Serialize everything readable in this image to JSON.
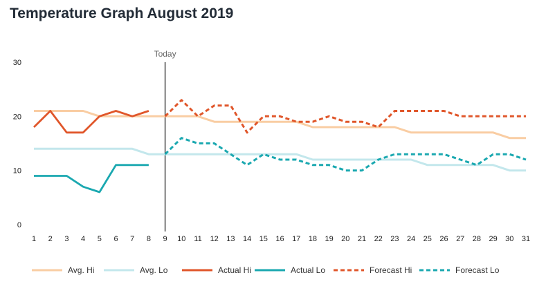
{
  "title": "Temperature Graph August 2019",
  "today_label": "Today",
  "chart_data": {
    "type": "line",
    "title": "Temperature Graph August 2019",
    "xlabel": "",
    "ylabel": "",
    "x": [
      1,
      2,
      3,
      4,
      5,
      6,
      7,
      8,
      9,
      10,
      11,
      12,
      13,
      14,
      15,
      16,
      17,
      18,
      19,
      20,
      21,
      22,
      23,
      24,
      25,
      26,
      27,
      28,
      29,
      30,
      31
    ],
    "xlim": [
      1,
      31
    ],
    "ylim": [
      0,
      30
    ],
    "yticks": [
      0,
      10,
      20,
      30
    ],
    "today_x": 9,
    "legend_position": "bottom",
    "series": [
      {
        "name": "Avg. Hi",
        "color": "#f9cda3",
        "dash": "solid",
        "x": [
          1,
          2,
          3,
          4,
          5,
          6,
          7,
          8,
          9,
          10,
          11,
          12,
          13,
          14,
          15,
          16,
          17,
          18,
          19,
          20,
          21,
          22,
          23,
          24,
          25,
          26,
          27,
          28,
          29,
          30,
          31
        ],
        "values": [
          21,
          21,
          21,
          21,
          20,
          20,
          20,
          20,
          20,
          20,
          20,
          19,
          19,
          19,
          19,
          19,
          19,
          18,
          18,
          18,
          18,
          18,
          18,
          17,
          17,
          17,
          17,
          17,
          17,
          16,
          16
        ]
      },
      {
        "name": "Avg. Lo",
        "color": "#c3e7ec",
        "dash": "solid",
        "x": [
          1,
          2,
          3,
          4,
          5,
          6,
          7,
          8,
          9,
          10,
          11,
          12,
          13,
          14,
          15,
          16,
          17,
          18,
          19,
          20,
          21,
          22,
          23,
          24,
          25,
          26,
          27,
          28,
          29,
          30,
          31
        ],
        "values": [
          14,
          14,
          14,
          14,
          14,
          14,
          14,
          13,
          13,
          13,
          13,
          13,
          13,
          13,
          13,
          13,
          13,
          12,
          12,
          12,
          12,
          12,
          12,
          12,
          11,
          11,
          11,
          11,
          11,
          10,
          10
        ]
      },
      {
        "name": "Actual Hi",
        "color": "#e0562a",
        "dash": "solid",
        "x": [
          1,
          2,
          3,
          4,
          5,
          6,
          7,
          8
        ],
        "values": [
          18,
          21,
          17,
          17,
          20,
          21,
          20,
          21
        ]
      },
      {
        "name": "Actual Lo",
        "color": "#1aa8b0",
        "dash": "solid",
        "x": [
          1,
          2,
          3,
          4,
          5,
          6,
          7,
          8
        ],
        "values": [
          9,
          9,
          9,
          7,
          6,
          11,
          11,
          11
        ]
      },
      {
        "name": "Forecast Hi",
        "color": "#e0562a",
        "dash": "dashed",
        "x": [
          9,
          10,
          11,
          12,
          13,
          14,
          15,
          16,
          17,
          18,
          19,
          20,
          21,
          22,
          23,
          24,
          25,
          26,
          27,
          28,
          29,
          30,
          31
        ],
        "values": [
          20,
          23,
          20,
          22,
          22,
          17,
          20,
          20,
          19,
          19,
          20,
          19,
          19,
          18,
          21,
          21,
          21,
          21,
          20,
          20,
          20,
          20,
          20
        ]
      },
      {
        "name": "Forecast Lo",
        "color": "#1aa8b0",
        "dash": "dashed",
        "x": [
          9,
          10,
          11,
          12,
          13,
          14,
          15,
          16,
          17,
          18,
          19,
          20,
          21,
          22,
          23,
          24,
          25,
          26,
          27,
          28,
          29,
          30,
          31
        ],
        "values": [
          13,
          16,
          15,
          15,
          13,
          11,
          13,
          12,
          12,
          11,
          11,
          10,
          10,
          12,
          13,
          13,
          13,
          13,
          12,
          11,
          13,
          13,
          12
        ]
      }
    ]
  }
}
